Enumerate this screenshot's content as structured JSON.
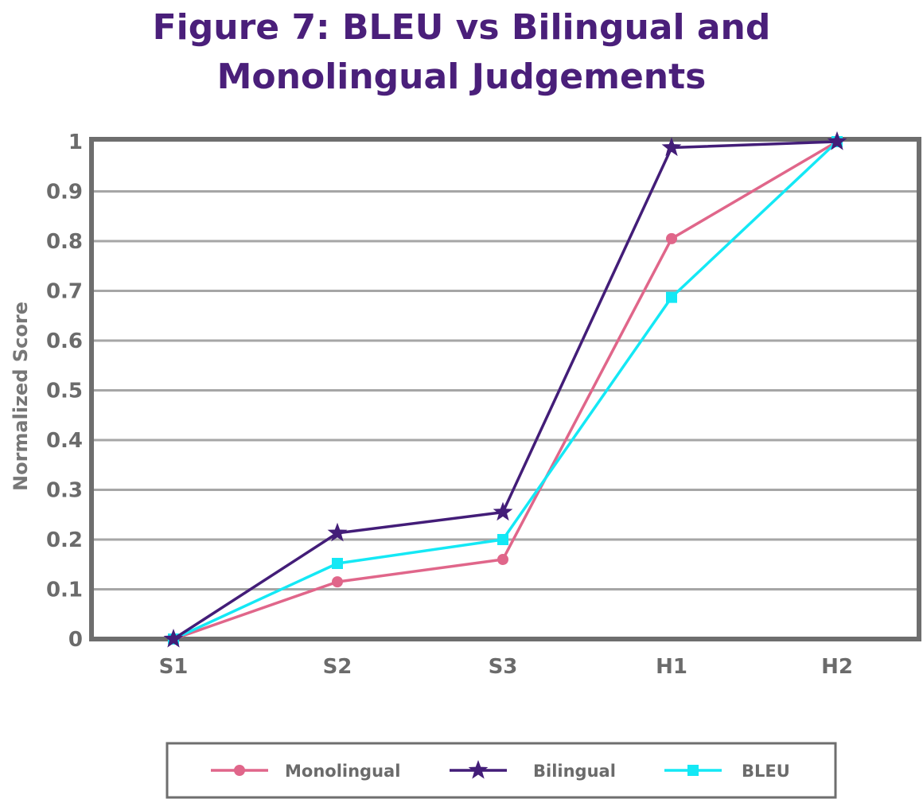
{
  "chart_data": {
    "type": "line",
    "title_lines": [
      "Figure 7: BLEU vs Bilingual and",
      "Monolingual Judgements"
    ],
    "xlabel": "",
    "ylabel": "Normalized Score",
    "categories": [
      "S1",
      "S2",
      "S3",
      "H1",
      "H2"
    ],
    "ylim": [
      0,
      1
    ],
    "yticks": [
      "0",
      "0.1",
      "0.2",
      "0.3",
      "0.4",
      "0.5",
      "0.6",
      "0.7",
      "0.8",
      "0.9",
      "1"
    ],
    "grid": true,
    "legend_position": "bottom",
    "series": [
      {
        "name": "Monolingual",
        "values": [
          0,
          0.115,
          0.16,
          0.805,
          1.0
        ],
        "color": "#e0668a",
        "marker": "circle"
      },
      {
        "name": "Bilingual",
        "values": [
          0,
          0.213,
          0.255,
          0.988,
          1.0
        ],
        "color": "#431d78",
        "marker": "star"
      },
      {
        "name": "BLEU",
        "values": [
          0,
          0.152,
          0.2,
          0.687,
          1.0
        ],
        "color": "#14e8f5",
        "marker": "square"
      }
    ]
  }
}
